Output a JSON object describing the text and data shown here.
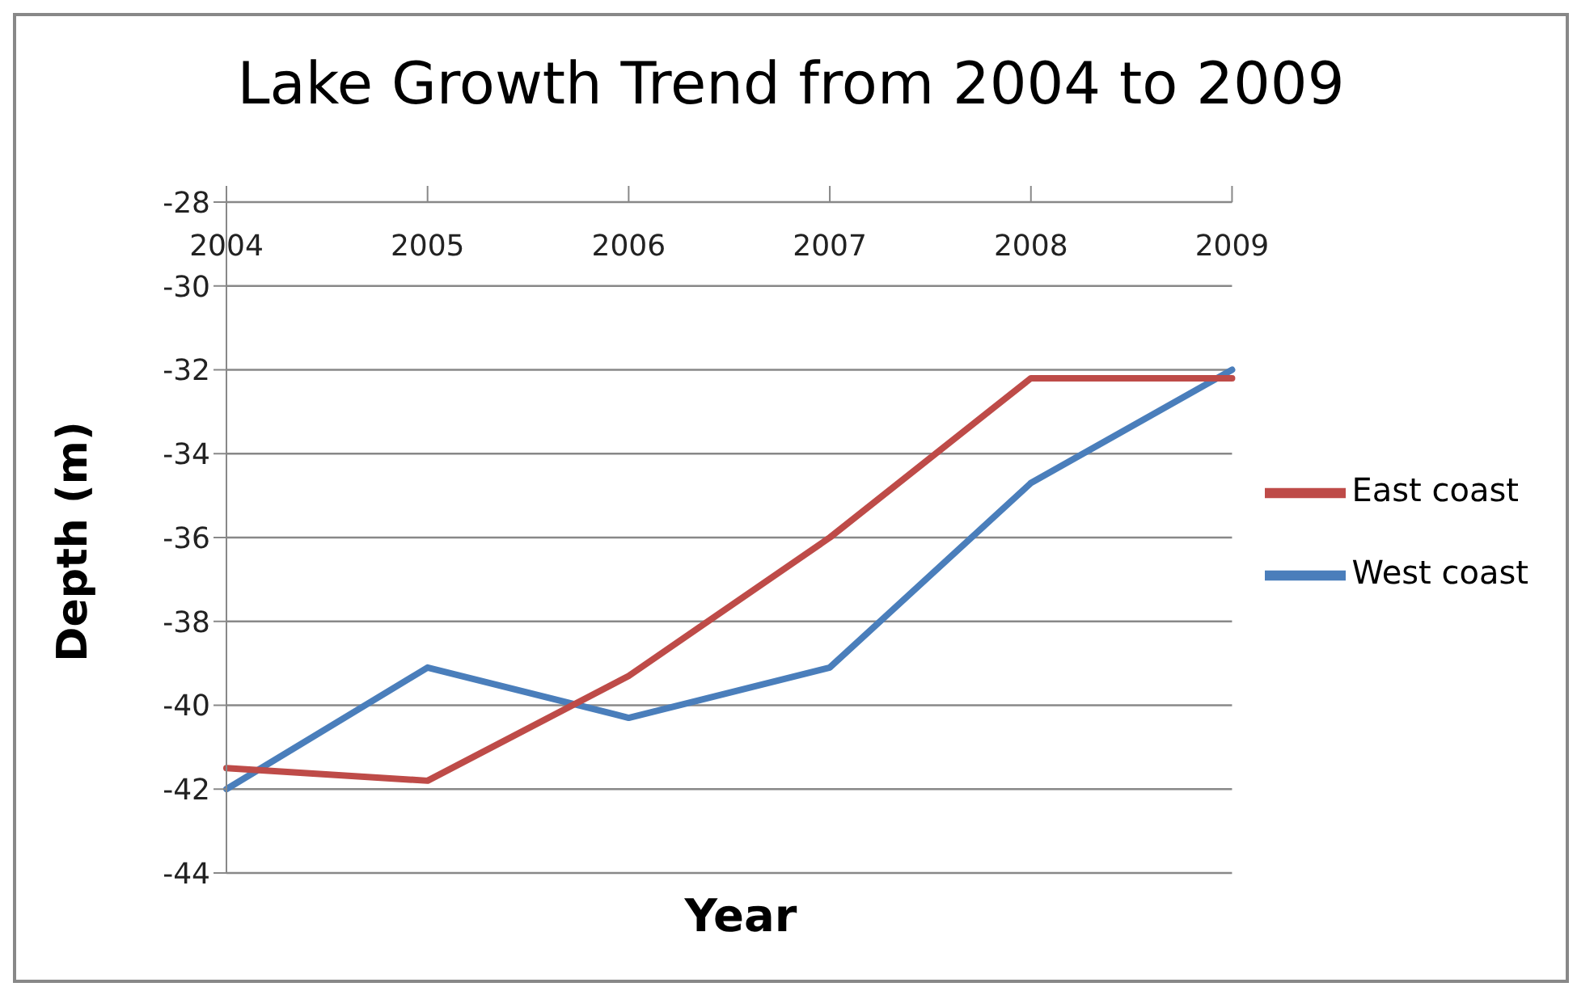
{
  "chart_data": {
    "type": "line",
    "title": "Lake Growth Trend from 2004 to 2009",
    "xlabel": "Year",
    "ylabel": "Depth (m)",
    "categories": [
      "2004",
      "2005",
      "2006",
      "2007",
      "2008",
      "2009"
    ],
    "series": [
      {
        "name": "West coast",
        "color": "#4a7ebb",
        "values": [
          -42.0,
          -39.1,
          -40.3,
          -39.1,
          -34.7,
          -32.0
        ]
      },
      {
        "name": "East coast",
        "color": "#be4b48",
        "values": [
          -41.5,
          -41.8,
          -39.3,
          -36.0,
          -32.2,
          -32.2
        ]
      }
    ],
    "ylim": [
      -44,
      -28
    ],
    "yticks": [
      -44,
      -42,
      -40,
      -38,
      -36,
      -34,
      -32,
      -30,
      -28
    ],
    "grid": "y",
    "legend": "right",
    "marker": "none",
    "line_style": "solid"
  }
}
